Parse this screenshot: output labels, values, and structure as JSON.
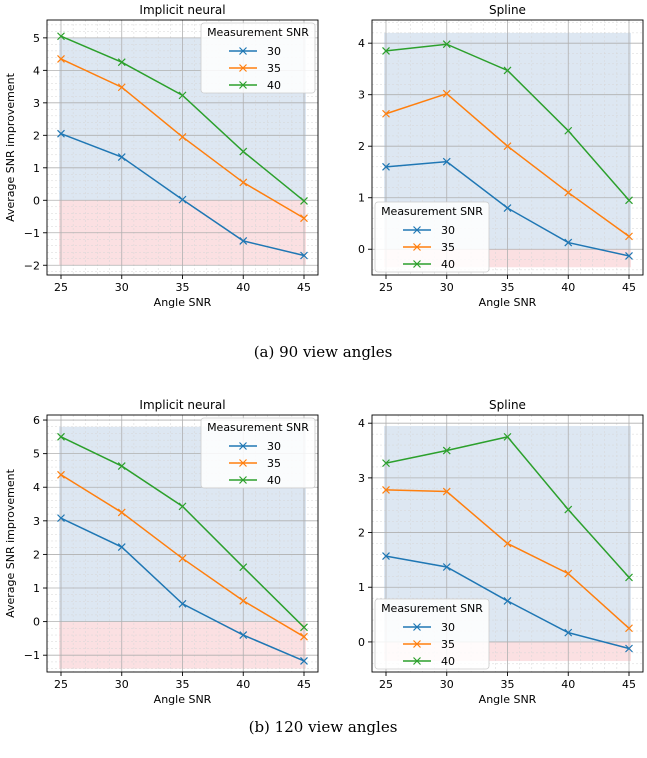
{
  "colors": {
    "series": [
      "#1f77b4",
      "#ff7f0e",
      "#2ca02c"
    ],
    "positive_region": "#dde7f2",
    "negative_region": "#fbe0e2"
  },
  "legend_title": "Measurement SNR",
  "captions": [
    "(a) 90 view angles",
    "(b) 120 view angles"
  ],
  "chart_data": [
    {
      "type": "line",
      "title": "Implicit neural",
      "xlabel": "Angle SNR",
      "ylabel": "Average SNR improvement",
      "x": [
        25,
        30,
        35,
        40,
        45
      ],
      "xticks": [
        25,
        30,
        35,
        40,
        45
      ],
      "ylim": [
        -2.3,
        5.55
      ],
      "yticks": [
        -2,
        -1,
        0,
        1,
        2,
        3,
        4,
        5
      ],
      "shaded_ylim": [
        -2,
        5
      ],
      "grid": true,
      "legend_position": "upper right",
      "series": [
        {
          "name": "30",
          "values": [
            2.05,
            1.33,
            0.02,
            -1.25,
            -1.7
          ]
        },
        {
          "name": "35",
          "values": [
            4.35,
            3.48,
            1.95,
            0.55,
            -0.55
          ]
        },
        {
          "name": "40",
          "values": [
            5.05,
            4.25,
            3.23,
            1.5,
            -0.02
          ]
        }
      ]
    },
    {
      "type": "line",
      "title": "Spline",
      "xlabel": "Angle SNR",
      "ylabel": "",
      "x": [
        25,
        30,
        35,
        40,
        45
      ],
      "xticks": [
        25,
        30,
        35,
        40,
        45
      ],
      "ylim": [
        -0.5,
        4.45
      ],
      "yticks": [
        0,
        1,
        2,
        3,
        4
      ],
      "shaded_ylim": [
        -0.35,
        4.2
      ],
      "grid": true,
      "legend_position": "lower left",
      "series": [
        {
          "name": "30",
          "values": [
            1.6,
            1.7,
            0.8,
            0.13,
            -0.13
          ]
        },
        {
          "name": "35",
          "values": [
            2.63,
            3.02,
            2.0,
            1.1,
            0.25
          ]
        },
        {
          "name": "40",
          "values": [
            3.85,
            3.98,
            3.47,
            2.3,
            0.95
          ]
        }
      ]
    },
    {
      "type": "line",
      "title": "Implicit neural",
      "xlabel": "Angle SNR",
      "ylabel": "Average SNR improvement",
      "x": [
        25,
        30,
        35,
        40,
        45
      ],
      "xticks": [
        25,
        30,
        35,
        40,
        45
      ],
      "ylim": [
        -1.5,
        6.15
      ],
      "yticks": [
        -1,
        0,
        1,
        2,
        3,
        4,
        5,
        6
      ],
      "shaded_ylim": [
        -1.4,
        5.8
      ],
      "grid": true,
      "legend_position": "upper right",
      "series": [
        {
          "name": "30",
          "values": [
            3.08,
            2.22,
            0.53,
            -0.4,
            -1.17
          ]
        },
        {
          "name": "35",
          "values": [
            4.37,
            3.25,
            1.88,
            0.62,
            -0.45
          ]
        },
        {
          "name": "40",
          "values": [
            5.5,
            4.63,
            3.43,
            1.62,
            -0.17
          ]
        }
      ]
    },
    {
      "type": "line",
      "title": "Spline",
      "xlabel": "Angle SNR",
      "ylabel": "",
      "x": [
        25,
        30,
        35,
        40,
        45
      ],
      "xticks": [
        25,
        30,
        35,
        40,
        45
      ],
      "ylim": [
        -0.55,
        4.15
      ],
      "yticks": [
        0,
        1,
        2,
        3,
        4
      ],
      "shaded_ylim": [
        -0.35,
        3.95
      ],
      "grid": true,
      "legend_position": "lower left",
      "series": [
        {
          "name": "30",
          "values": [
            1.57,
            1.37,
            0.75,
            0.17,
            -0.12
          ]
        },
        {
          "name": "35",
          "values": [
            2.78,
            2.75,
            1.8,
            1.25,
            0.25
          ]
        },
        {
          "name": "40",
          "values": [
            3.27,
            3.5,
            3.75,
            2.42,
            1.18
          ]
        }
      ]
    }
  ]
}
